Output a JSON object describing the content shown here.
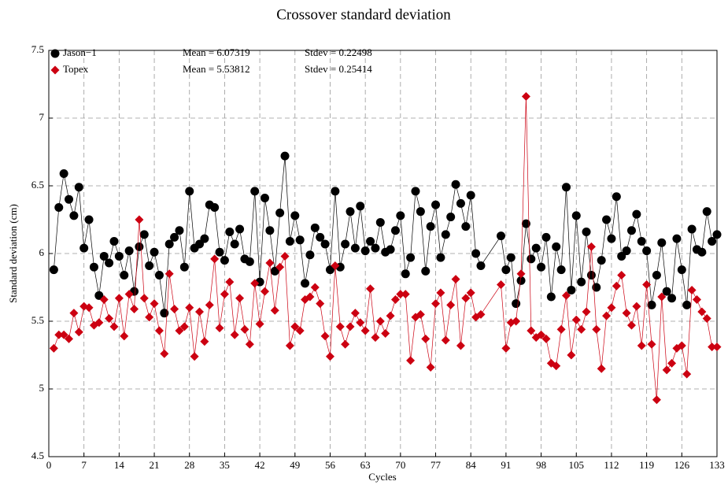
{
  "chart_data": {
    "type": "line",
    "title": "Crossover standard deviation",
    "xlabel": "Cycles",
    "ylabel": "Standard deviation (cm)",
    "x": [
      1,
      2,
      3,
      4,
      5,
      6,
      7,
      8,
      9,
      10,
      11,
      12,
      13,
      14,
      15,
      16,
      17,
      18,
      19,
      20,
      21,
      22,
      23,
      24,
      25,
      26,
      27,
      28,
      29,
      30,
      31,
      32,
      33,
      34,
      35,
      36,
      37,
      38,
      39,
      40,
      41,
      42,
      43,
      44,
      45,
      46,
      47,
      48,
      49,
      50,
      51,
      52,
      53,
      54,
      55,
      56,
      57,
      58,
      59,
      60,
      61,
      62,
      63,
      64,
      65,
      66,
      67,
      68,
      69,
      70,
      71,
      72,
      73,
      74,
      75,
      76,
      77,
      78,
      79,
      80,
      81,
      82,
      83,
      84,
      85,
      86,
      90,
      91,
      92,
      93,
      94,
      95,
      96,
      97,
      98,
      99,
      100,
      101,
      102,
      103,
      104,
      105,
      106,
      107,
      108,
      109,
      110,
      111,
      112,
      113,
      114,
      115,
      116,
      117,
      118,
      119,
      120,
      121,
      122,
      123,
      124,
      125,
      126,
      127,
      128,
      129,
      130,
      131,
      132,
      133
    ],
    "series": [
      {
        "name": "Jason−1",
        "color": "#000000",
        "marker": "circle",
        "stats": [
          "Mean = 6.07319",
          "Stdev = 0.22498"
        ],
        "values": [
          5.88,
          6.34,
          6.59,
          6.4,
          6.28,
          6.49,
          6.04,
          6.25,
          5.9,
          5.69,
          5.98,
          5.93,
          6.09,
          5.98,
          5.84,
          6.02,
          5.72,
          6.05,
          6.14,
          5.91,
          6.01,
          5.84,
          5.56,
          6.07,
          6.12,
          6.17,
          5.9,
          6.46,
          6.04,
          6.07,
          6.11,
          6.36,
          6.34,
          6.01,
          5.95,
          6.16,
          6.07,
          6.18,
          5.96,
          5.94,
          6.46,
          5.79,
          6.41,
          6.17,
          5.87,
          6.3,
          6.72,
          6.09,
          6.28,
          6.1,
          5.78,
          5.99,
          6.19,
          6.12,
          6.07,
          5.88,
          6.46,
          5.9,
          6.07,
          6.31,
          6.04,
          6.35,
          6.02,
          6.09,
          6.04,
          6.23,
          6.01,
          6.03,
          6.17,
          6.28,
          5.85,
          5.97,
          6.46,
          6.31,
          5.87,
          6.2,
          6.36,
          5.97,
          6.14,
          6.27,
          6.51,
          6.37,
          6.2,
          6.43,
          6.0,
          5.91,
          6.13,
          5.88,
          5.97,
          5.63,
          5.8,
          6.22,
          5.96,
          6.04,
          5.9,
          6.12,
          5.68,
          6.05,
          5.88,
          6.49,
          5.73,
          6.28,
          5.79,
          6.16,
          5.84,
          5.75,
          5.95,
          6.25,
          6.11,
          6.42,
          5.98,
          6.02,
          6.17,
          6.29,
          6.09,
          6.02,
          5.62,
          5.84,
          6.08,
          5.72,
          5.67,
          6.11,
          5.88,
          5.62,
          6.18,
          6.03,
          6.01,
          6.31,
          6.09,
          6.14
        ]
      },
      {
        "name": "Topex",
        "color": "#cc0011",
        "marker": "diamond",
        "stats": [
          "Mean = 5.53812",
          "Stdev = 0.25414"
        ],
        "values": [
          5.3,
          5.4,
          5.4,
          5.37,
          5.56,
          5.42,
          5.61,
          5.6,
          5.47,
          5.49,
          5.66,
          5.52,
          5.46,
          5.67,
          5.39,
          5.7,
          5.59,
          6.25,
          5.67,
          5.53,
          5.63,
          5.43,
          5.26,
          5.85,
          5.59,
          5.43,
          5.46,
          5.6,
          5.24,
          5.57,
          5.35,
          5.62,
          5.96,
          5.45,
          5.7,
          5.79,
          5.4,
          5.67,
          5.44,
          5.33,
          5.78,
          5.48,
          5.72,
          5.93,
          5.58,
          5.9,
          5.98,
          5.32,
          5.46,
          5.43,
          5.66,
          5.68,
          5.75,
          5.63,
          5.39,
          5.24,
          5.91,
          5.46,
          5.33,
          5.46,
          5.56,
          5.49,
          5.43,
          5.74,
          5.38,
          5.5,
          5.41,
          5.54,
          5.66,
          5.7,
          5.7,
          5.21,
          5.53,
          5.55,
          5.37,
          5.16,
          5.63,
          5.71,
          5.36,
          5.62,
          5.81,
          5.32,
          5.67,
          5.71,
          5.53,
          5.55,
          5.77,
          5.3,
          5.49,
          5.5,
          5.85,
          7.16,
          5.43,
          5.38,
          5.4,
          5.37,
          5.19,
          5.17,
          5.44,
          5.69,
          5.25,
          5.51,
          5.44,
          5.57,
          6.05,
          5.44,
          5.15,
          5.54,
          5.6,
          5.76,
          5.84,
          5.56,
          5.47,
          5.61,
          5.32,
          5.77,
          5.33,
          4.92,
          5.68,
          5.14,
          5.19,
          5.3,
          5.32,
          5.11,
          5.73,
          5.66,
          5.57,
          5.52,
          5.31,
          5.31
        ]
      }
    ],
    "xlim": [
      0,
      133
    ],
    "xticks": [
      0,
      7,
      14,
      21,
      28,
      35,
      42,
      49,
      56,
      63,
      70,
      77,
      84,
      91,
      98,
      105,
      112,
      119,
      126,
      133
    ],
    "ylim": [
      4.5,
      7.5
    ],
    "yticks": [
      4.5,
      5,
      5.5,
      6,
      6.5,
      7,
      7.5
    ],
    "grid": true,
    "legend": "upper left"
  }
}
